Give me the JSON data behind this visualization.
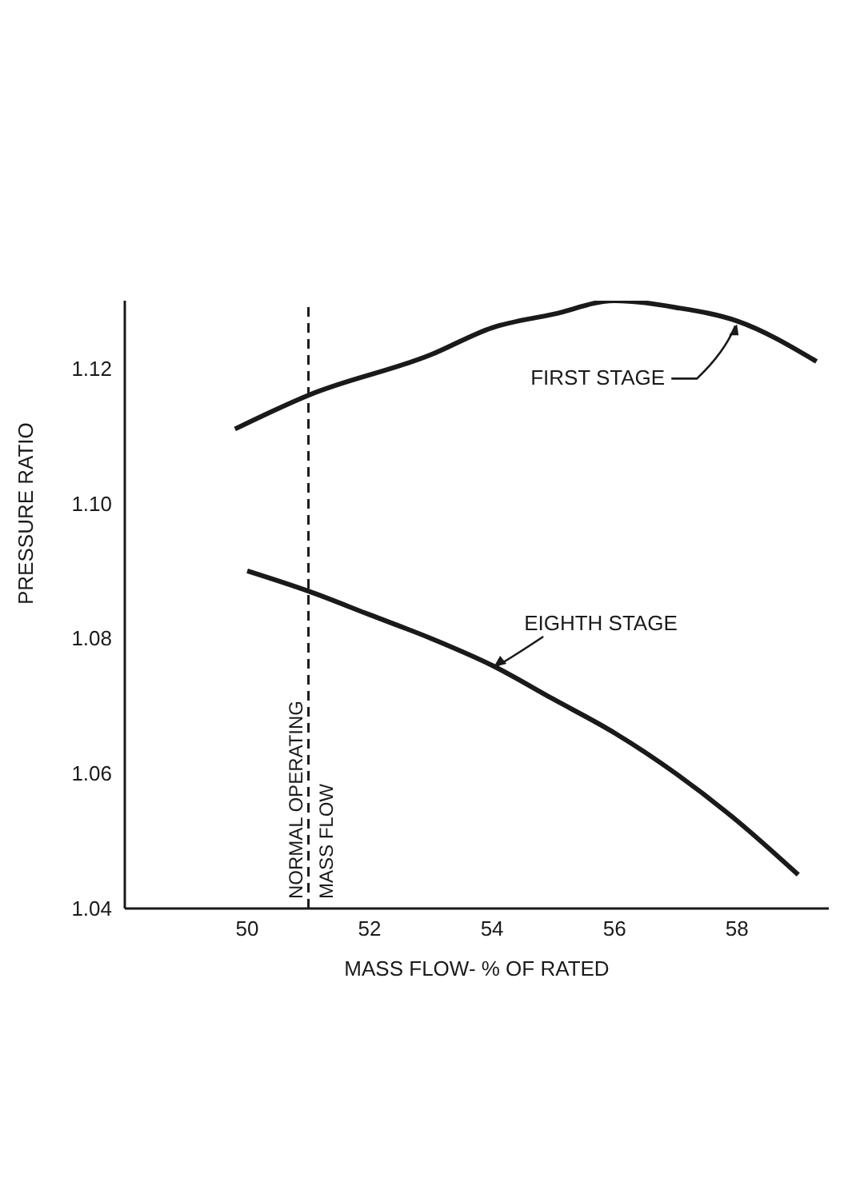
{
  "chart_data": {
    "type": "line",
    "xlabel": "MASS FLOW- % OF RATED",
    "ylabel": "PRESSURE RATIO",
    "xlim": [
      48,
      59.5
    ],
    "xticks": [
      50,
      52,
      54,
      56,
      58
    ],
    "ylim": [
      1.04,
      1.13
    ],
    "yticks": [
      {
        "value": 1.04,
        "label": "1.04"
      },
      {
        "value": 1.06,
        "label": "1.06"
      },
      {
        "value": 1.08,
        "label": "1.08"
      },
      {
        "value": 1.1,
        "label": "1.10"
      },
      {
        "value": 1.12,
        "label": "1.12"
      }
    ],
    "grid": false,
    "legend": false,
    "marker": "none",
    "line_style": "solid",
    "ref_lines": [
      {
        "axis": "x",
        "value": 51,
        "label": "NORMAL OPERATING MASS FLOW",
        "line_style": "dashed"
      }
    ],
    "series": [
      {
        "name": "FIRST STAGE",
        "color": "#1a1a1a",
        "x": [
          49.8,
          51,
          53,
          54,
          55,
          56,
          57,
          58,
          59.3
        ],
        "values": [
          1.111,
          1.116,
          1.122,
          1.126,
          1.128,
          1.13,
          1.129,
          1.127,
          1.121
        ]
      },
      {
        "name": "EIGHTH STAGE",
        "color": "#1a1a1a",
        "x": [
          50,
          51,
          52,
          53,
          54,
          55,
          56,
          57,
          58,
          59
        ],
        "values": [
          1.09,
          1.087,
          1.0835,
          1.08,
          1.076,
          1.071,
          1.066,
          1.06,
          1.053,
          1.045
        ]
      }
    ]
  }
}
